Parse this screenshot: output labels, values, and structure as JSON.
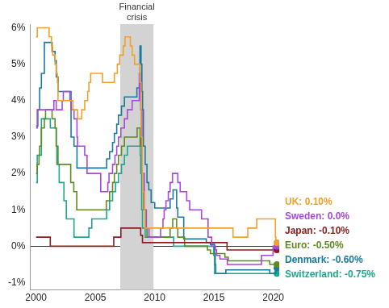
{
  "chart_data": {
    "type": "line",
    "line_style": "stepped",
    "grid": false,
    "xlim": [
      1999.5,
      2020.5
    ],
    "xticks": [
      2000,
      2005,
      2010,
      2015,
      2020
    ],
    "ylim": [
      -1.2,
      6.1
    ],
    "yticks": [
      {
        "value": -1,
        "label": "-1%"
      },
      {
        "value": 0,
        "label": "0%"
      },
      {
        "value": 1,
        "label": "1%"
      },
      {
        "value": 2,
        "label": "2%"
      },
      {
        "value": 3,
        "label": "3%"
      },
      {
        "value": 4,
        "label": "4%"
      },
      {
        "value": 5,
        "label": "5%"
      },
      {
        "value": 6,
        "label": "6%"
      }
    ],
    "annotations": [
      {
        "text": "Financial crisis",
        "x_range": [
          2007.1,
          2009.9
        ]
      }
    ],
    "series": [
      {
        "name": "UK",
        "label": "UK: 0.10%",
        "color": "#f0a12c",
        "marker": "end",
        "x": [
          2000.0,
          2000.1,
          2001.1,
          2001.3,
          2001.4,
          2001.6,
          2001.7,
          2001.8,
          2001.85,
          2003.1,
          2003.5,
          2003.85,
          2004.1,
          2004.35,
          2004.45,
          2004.6,
          2005.6,
          2006.6,
          2006.85,
          2007.05,
          2007.35,
          2007.5,
          2007.95,
          2008.1,
          2008.3,
          2008.75,
          2008.85,
          2008.95,
          2009.02,
          2009.1,
          2009.18,
          2016.6,
          2017.85,
          2018.6,
          2020.18,
          2020.22,
          2020.3
        ],
        "values": [
          5.75,
          6.0,
          5.75,
          5.5,
          5.25,
          5.0,
          4.75,
          4.5,
          4.0,
          3.75,
          3.5,
          3.75,
          4.0,
          4.25,
          4.5,
          4.75,
          4.5,
          4.75,
          5.0,
          5.25,
          5.5,
          5.75,
          5.5,
          5.25,
          5.0,
          4.5,
          3.0,
          2.0,
          1.5,
          1.0,
          0.5,
          0.25,
          0.5,
          0.75,
          0.25,
          0.1,
          0.1
        ]
      },
      {
        "name": "Sweden",
        "label": "Sweden: 0.0%",
        "color": "#a846e0",
        "marker": "end",
        "x": [
          2000.0,
          2000.1,
          2001.5,
          2001.7,
          2002.2,
          2002.3,
          2002.85,
          2002.95,
          2003.2,
          2003.45,
          2003.5,
          2004.1,
          2004.3,
          2005.45,
          2006.05,
          2006.15,
          2006.45,
          2006.65,
          2006.8,
          2006.95,
          2007.15,
          2007.45,
          2007.7,
          2008.1,
          2008.7,
          2008.77,
          2008.82,
          2008.93,
          2009.12,
          2009.3,
          2009.52,
          2010.5,
          2010.7,
          2010.8,
          2010.95,
          2011.15,
          2011.3,
          2011.5,
          2011.95,
          2012.15,
          2012.7,
          2012.95,
          2013.95,
          2014.5,
          2014.8,
          2015.12,
          2015.22,
          2015.5,
          2016.12,
          2019.0,
          2019.98,
          2020.3
        ],
        "values": [
          3.25,
          3.75,
          4.0,
          3.75,
          4.0,
          4.25,
          4.0,
          3.75,
          3.5,
          3.0,
          2.75,
          2.5,
          2.0,
          1.5,
          1.75,
          2.0,
          2.25,
          2.5,
          2.75,
          3.0,
          3.25,
          3.5,
          3.75,
          4.0,
          4.75,
          4.25,
          3.75,
          2.0,
          1.0,
          0.5,
          0.25,
          0.5,
          0.75,
          1.0,
          1.25,
          1.5,
          1.75,
          2.0,
          1.75,
          1.5,
          1.25,
          1.0,
          0.75,
          0.25,
          0.0,
          -0.1,
          -0.25,
          -0.35,
          -0.5,
          -0.25,
          0.0,
          0.0
        ]
      },
      {
        "name": "Japan",
        "label": "Japan: -0.10%",
        "color": "#8c1c1c",
        "marker": "end",
        "x": [
          2000.0,
          2001.2,
          2006.55,
          2007.15,
          2008.82,
          2008.97,
          2016.1,
          2020.3
        ],
        "values": [
          0.25,
          0.0,
          0.25,
          0.5,
          0.3,
          0.1,
          -0.1,
          -0.1
        ]
      },
      {
        "name": "Euro",
        "label": "Euro: -0.50%",
        "color": "#5f8a1f",
        "marker": "end",
        "x": [
          2000.0,
          2000.1,
          2000.25,
          2000.3,
          2000.45,
          2000.7,
          2000.8,
          2001.35,
          2001.6,
          2001.7,
          2001.85,
          2002.92,
          2003.18,
          2003.43,
          2005.92,
          2006.2,
          2006.45,
          2006.6,
          2006.8,
          2006.95,
          2007.2,
          2007.45,
          2008.52,
          2008.77,
          2008.8,
          2008.85,
          2008.92,
          2008.95,
          2009.05,
          2009.2,
          2009.35,
          2011.3,
          2011.52,
          2011.85,
          2011.95,
          2012.52,
          2014.45,
          2014.7,
          2015.92,
          2016.2,
          2019.7,
          2020.3
        ],
        "values": [
          2.0,
          2.25,
          2.5,
          2.75,
          3.25,
          3.5,
          3.75,
          3.5,
          3.25,
          2.75,
          2.25,
          1.75,
          1.5,
          1.0,
          1.25,
          1.5,
          1.75,
          2.0,
          2.25,
          2.5,
          2.75,
          3.0,
          3.25,
          2.75,
          3.25,
          2.75,
          2.25,
          2.0,
          1.0,
          0.5,
          0.25,
          0.5,
          0.75,
          0.5,
          0.25,
          0.0,
          -0.1,
          -0.2,
          -0.3,
          -0.4,
          -0.5,
          -0.5
        ]
      },
      {
        "name": "Denmark",
        "label": "Denmark: -0.60%",
        "color": "#1a7a9c",
        "marker": "end",
        "x": [
          2000.0,
          2000.15,
          2000.3,
          2000.45,
          2000.7,
          2001.35,
          2001.6,
          2001.7,
          2001.85,
          2002.95,
          2003.2,
          2003.45,
          2005.95,
          2006.2,
          2006.45,
          2006.6,
          2006.8,
          2006.95,
          2007.2,
          2007.45,
          2008.5,
          2008.76,
          2008.85,
          2008.92,
          2008.98,
          2009.05,
          2009.2,
          2009.35,
          2009.5,
          2009.7,
          2010.0,
          2011.3,
          2011.55,
          2011.85,
          2011.95,
          2012.45,
          2014.35,
          2014.7,
          2015.05,
          2015.1,
          2015.15,
          2016.0,
          2019.7,
          2020.2,
          2020.3
        ],
        "values": [
          3.3,
          3.75,
          4.35,
          4.75,
          5.6,
          5.35,
          5.1,
          4.65,
          4.25,
          3.0,
          2.75,
          2.15,
          2.4,
          2.6,
          2.85,
          3.1,
          3.35,
          3.6,
          3.85,
          4.1,
          4.35,
          5.5,
          5.0,
          4.25,
          3.75,
          2.75,
          2.25,
          1.75,
          1.55,
          1.2,
          1.05,
          1.3,
          1.55,
          1.05,
          0.8,
          0.2,
          0.1,
          0.05,
          -0.2,
          -0.5,
          -0.75,
          -0.65,
          -0.75,
          -0.6,
          -0.6
        ]
      },
      {
        "name": "Switzerland",
        "label": "Switzerland: -0.75%",
        "color": "#1ba98e",
        "marker": "end",
        "x": [
          2000.0,
          2000.1,
          2000.45,
          2001.2,
          2001.7,
          2001.75,
          2001.95,
          2002.35,
          2002.55,
          2003.2,
          2004.45,
          2004.7,
          2005.95,
          2006.2,
          2006.45,
          2006.7,
          2006.95,
          2007.2,
          2007.45,
          2007.7,
          2008.78,
          2008.82,
          2008.9,
          2008.97,
          2009.2,
          2011.6,
          2014.97,
          2015.05,
          2020.3
        ],
        "values": [
          1.75,
          2.5,
          3.5,
          3.25,
          2.75,
          2.25,
          1.75,
          1.25,
          0.75,
          0.25,
          0.5,
          0.75,
          1.0,
          1.25,
          1.5,
          1.75,
          2.0,
          2.25,
          2.5,
          2.75,
          2.5,
          2.0,
          1.0,
          0.5,
          0.25,
          0.0,
          -0.25,
          -0.75,
          -0.75
        ]
      }
    ]
  }
}
